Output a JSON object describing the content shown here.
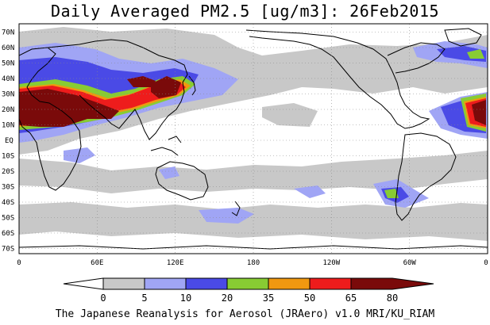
{
  "title": "Daily Averaged PM2.5 [ug/m3]: 26Feb2015",
  "footer": "The Japanese Reanalysis for Aerosol (JRAero) v1.0 MRI/KU_RIAM",
  "map": {
    "lat_labels": [
      "70N",
      "60N",
      "50N",
      "40N",
      "30N",
      "20N",
      "10N",
      "EQ",
      "10S",
      "20S",
      "30S",
      "40S",
      "50S",
      "60S",
      "70S"
    ],
    "lon_labels": [
      "0",
      "60E",
      "120E",
      "180",
      "120W",
      "60W",
      "0"
    ],
    "ocean_color": "#ffffff",
    "coast_color": "#000000",
    "grid_style": "dotted"
  },
  "colorbar": {
    "unit": "ug/m3",
    "levels": [
      "0",
      "5",
      "10",
      "20",
      "35",
      "50",
      "65",
      "80"
    ],
    "colors": [
      "#ffffff",
      "#c8c8c8",
      "#a0a5f5",
      "#4a4ae6",
      "#88cc33",
      "#f09810",
      "#ee1c1c",
      "#7a0a0a"
    ]
  }
}
